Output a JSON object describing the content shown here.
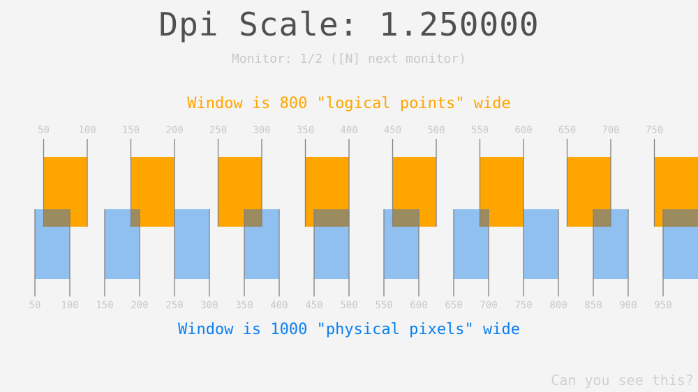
{
  "header": {
    "title": "Dpi Scale: 1.250000",
    "monitor_info": "Monitor: 1/2 ([N] next monitor)"
  },
  "logical": {
    "label": "Window is 800 \"logical points\" wide",
    "width": 800,
    "tick_step": 50,
    "ticks": [
      "50",
      "100",
      "150",
      "200",
      "250",
      "300",
      "350",
      "400",
      "450",
      "500",
      "550",
      "600",
      "650",
      "700",
      "750"
    ],
    "color": "#ffa500"
  },
  "physical": {
    "label": "Window is 1000 \"physical pixels\" wide",
    "width": 1000,
    "tick_step": 50,
    "ticks": [
      "50",
      "100",
      "150",
      "200",
      "250",
      "300",
      "350",
      "400",
      "450",
      "500",
      "550",
      "600",
      "650",
      "700",
      "750",
      "800",
      "850",
      "900",
      "950"
    ],
    "color": "#90c0f0"
  },
  "dpi_scale": 1.25,
  "footer": {
    "hint": "Can you see this?"
  }
}
